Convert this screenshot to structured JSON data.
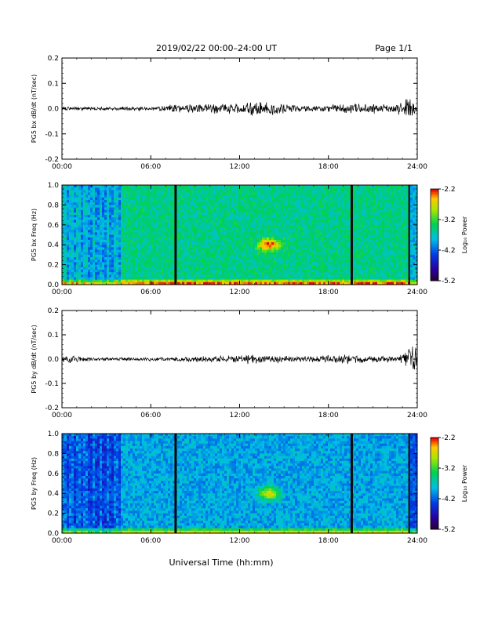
{
  "header": {
    "title": "2019/02/22  00:00–24:00 UT",
    "page": "Page 1/1"
  },
  "xlabel": "Universal Time (hh:mm)",
  "colorbar": {
    "label": "Log₁₀ Power",
    "range": [
      -5.2,
      -2.2
    ],
    "ticks": [
      "-2.2",
      "-3.2",
      "-4.2",
      "-5.2"
    ]
  },
  "chart_data": [
    {
      "type": "line",
      "ylabel": "PG5 bx dB/dt (nT/sec)",
      "xlim": [
        0,
        24
      ],
      "ylim": [
        -0.2,
        0.2
      ],
      "xticks": [
        "00:00",
        "06:00",
        "12:00",
        "18:00",
        "24:00"
      ],
      "yticks": [
        "0.2",
        "0.1",
        "0.0",
        "-0.1",
        "-0.2"
      ],
      "envelope": {
        "x_hours": [
          0,
          2,
          4,
          6,
          8,
          10,
          12,
          13,
          14,
          16,
          18,
          19.5,
          20,
          22,
          23,
          23.5,
          24
        ],
        "amplitude": [
          0.006,
          0.006,
          0.006,
          0.006,
          0.014,
          0.016,
          0.018,
          0.022,
          0.02,
          0.012,
          0.01,
          0.018,
          0.02,
          0.012,
          0.02,
          0.04,
          0.02
        ]
      }
    },
    {
      "type": "heatmap",
      "ylabel": "PG5 bx Freq (Hz)",
      "xlim": [
        0,
        24
      ],
      "ylim": [
        0,
        1.0
      ],
      "xticks": [
        "00:00",
        "06:00",
        "12:00",
        "18:00",
        "24:00"
      ],
      "yticks": [
        "1.0",
        "0.8",
        "0.6",
        "0.4",
        "0.2",
        "0.0"
      ],
      "data_gaps_hours": [
        [
          7.6,
          7.75
        ],
        [
          19.5,
          19.65
        ],
        [
          23.4,
          23.5
        ]
      ],
      "low_power_band_hours": [
        0,
        4
      ],
      "hotspot": {
        "x_hours": 14.0,
        "freq_hz": 0.4,
        "log_power": -2.6
      }
    },
    {
      "type": "line",
      "ylabel": "PG5 by dB/dt (nT/sec)",
      "xlim": [
        0,
        24
      ],
      "ylim": [
        -0.2,
        0.2
      ],
      "xticks": [
        "00:00",
        "06:00",
        "12:00",
        "18:00",
        "24:00"
      ],
      "yticks": [
        "0.2",
        "0.1",
        "0.0",
        "-0.1",
        "-0.2"
      ],
      "envelope": {
        "x_hours": [
          0,
          0.5,
          2,
          4,
          6,
          8,
          10,
          12,
          13,
          14,
          16,
          19.5,
          20,
          22,
          23,
          23.8,
          24
        ],
        "amplitude": [
          0.01,
          0.014,
          0.006,
          0.006,
          0.006,
          0.008,
          0.01,
          0.014,
          0.016,
          0.012,
          0.01,
          0.016,
          0.014,
          0.01,
          0.016,
          0.06,
          0.03
        ]
      }
    },
    {
      "type": "heatmap",
      "ylabel": "PG5 by Freq (Hz)",
      "xlim": [
        0,
        24
      ],
      "ylim": [
        0,
        1.0
      ],
      "xticks": [
        "00:00",
        "06:00",
        "12:00",
        "18:00",
        "24:00"
      ],
      "yticks": [
        "1.0",
        "0.8",
        "0.6",
        "0.4",
        "0.2",
        "0.0"
      ],
      "data_gaps_hours": [
        [
          7.6,
          7.75
        ],
        [
          19.5,
          19.65
        ],
        [
          23.4,
          23.5
        ]
      ],
      "low_power_band_hours": [
        0,
        4
      ],
      "hotspot": {
        "x_hours": 14.0,
        "freq_hz": 0.4,
        "log_power": -2.7
      }
    }
  ]
}
